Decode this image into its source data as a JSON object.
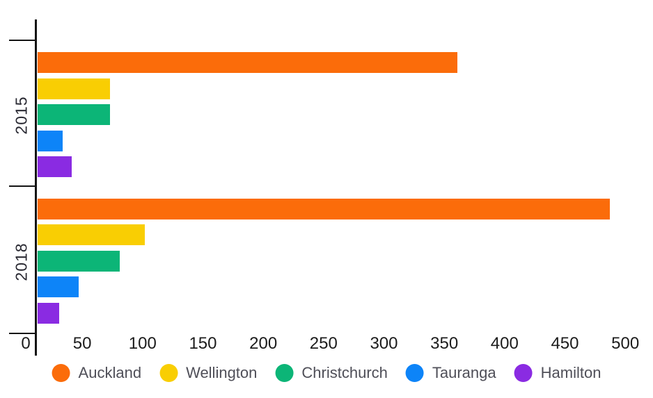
{
  "chart_data": {
    "type": "bar",
    "orientation": "horizontal",
    "title": "",
    "categories": [
      "2015",
      "2018"
    ],
    "series": [
      {
        "name": "Auckland",
        "color": "#FB6C0A",
        "values": [
          348,
          474
        ]
      },
      {
        "name": "Wellington",
        "color": "#F9CE03",
        "values": [
          60,
          89
        ]
      },
      {
        "name": "Christchurch",
        "color": "#0CB577",
        "values": [
          60,
          68
        ]
      },
      {
        "name": "Tauranga",
        "color": "#0D84F8",
        "values": [
          21,
          34
        ]
      },
      {
        "name": "Hamilton",
        "color": "#8A2BE2",
        "values": [
          28,
          18
        ]
      }
    ],
    "x_ticks": [
      0,
      50,
      100,
      150,
      200,
      250,
      300,
      350,
      400,
      450,
      500
    ],
    "xlim": [
      0,
      500
    ],
    "grid": false,
    "legend_position": "bottom-center",
    "axis_color": "#141414",
    "tick_label_color": "#1c1c1c",
    "legend_text_color": "#4f4f58"
  }
}
